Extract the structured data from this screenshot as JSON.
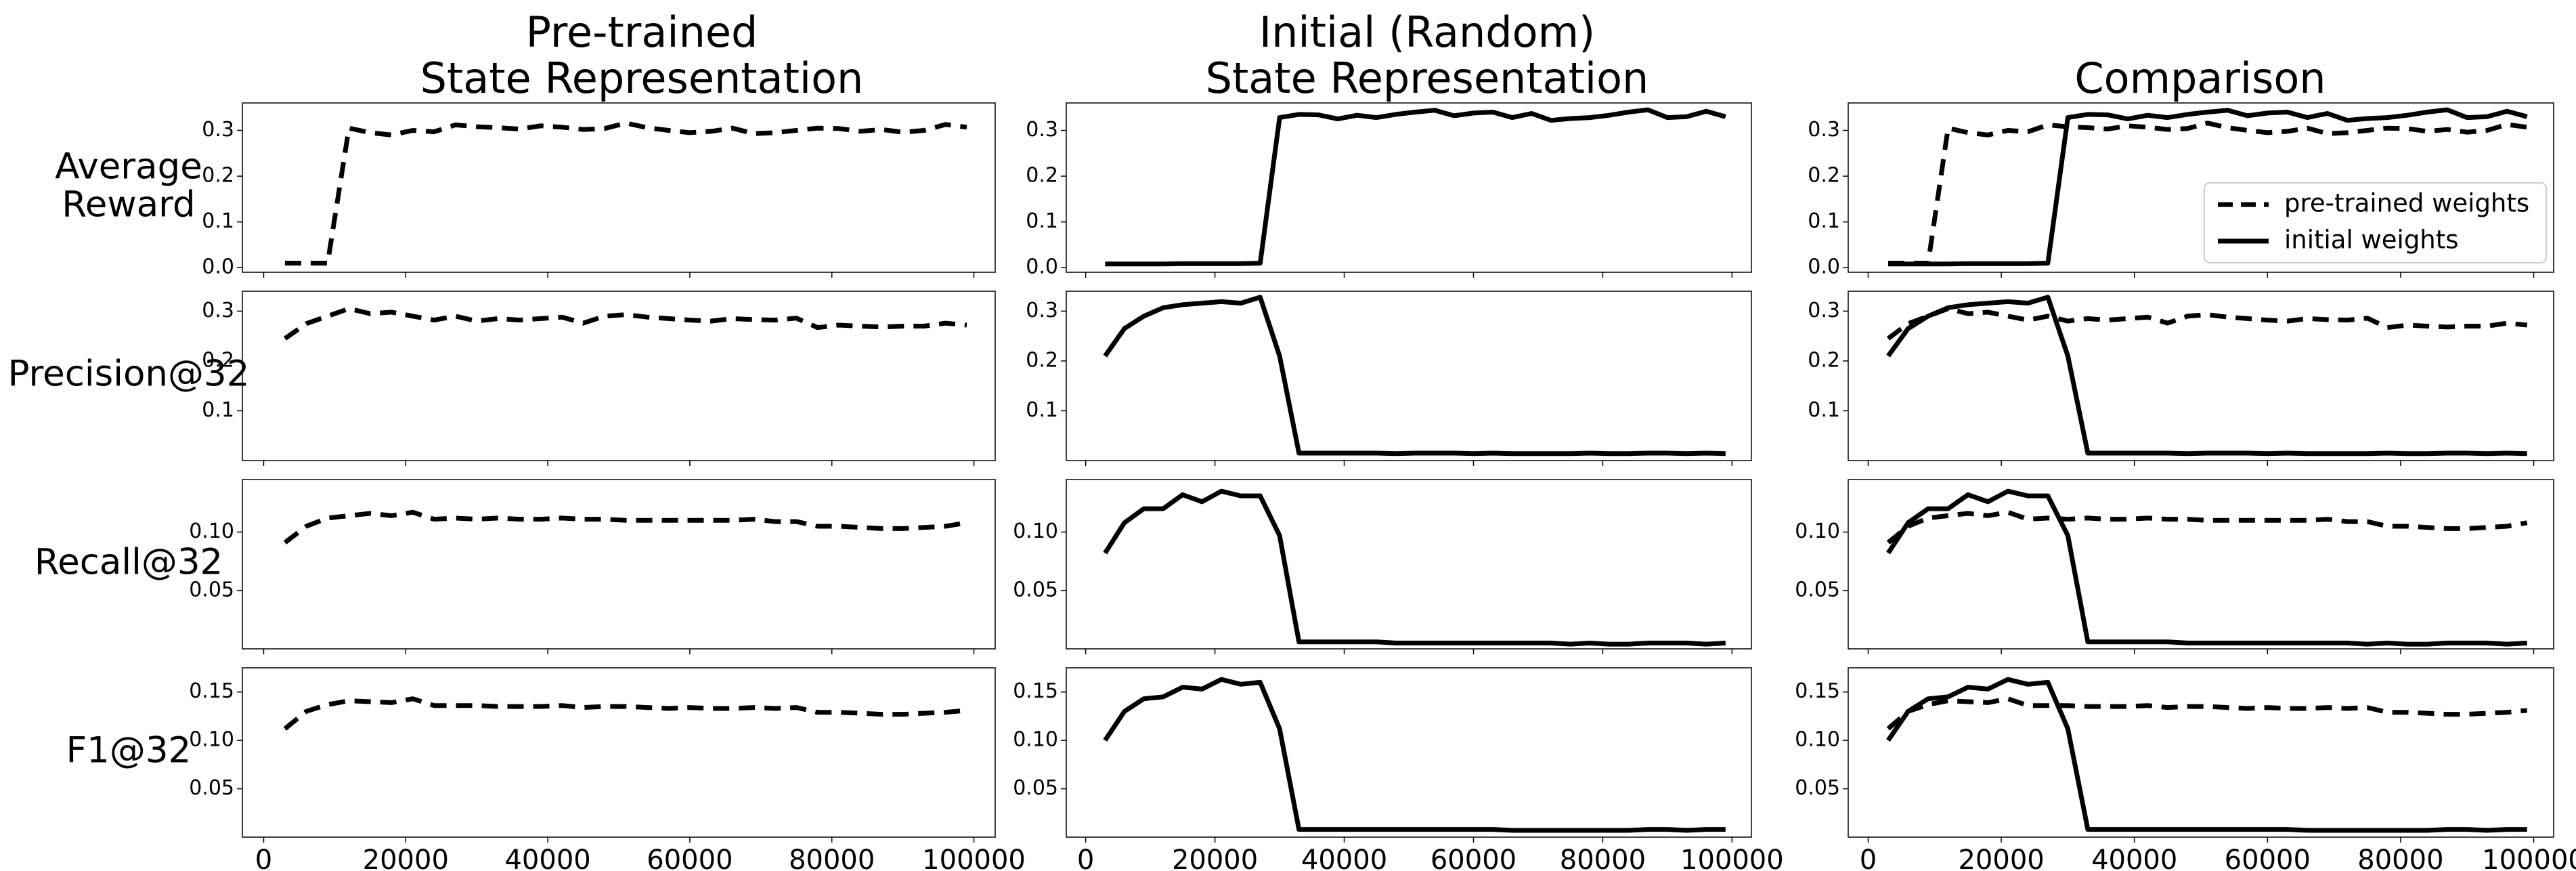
{
  "chart_data": {
    "type": "line",
    "column_titles": [
      [
        "Pre-trained",
        "State Representation"
      ],
      [
        "Initial (Random)",
        "State Representation"
      ],
      [
        "Comparison"
      ]
    ],
    "row_labels": [
      [
        "Average",
        "Reward"
      ],
      [
        "Precision@32"
      ],
      [
        "Recall@32"
      ],
      [
        "F1@32"
      ]
    ],
    "xlim": [
      -3000,
      103000
    ],
    "xticks": [
      0,
      20000,
      40000,
      60000,
      80000,
      100000
    ],
    "xtick_labels": [
      "0",
      "20000",
      "40000",
      "60000",
      "80000",
      "100000"
    ],
    "legend": {
      "placement": "center-right",
      "entries": [
        {
          "label": "pre-trained weights",
          "style": "dashed"
        },
        {
          "label": "initial weights",
          "style": "solid"
        }
      ]
    },
    "x": [
      3000,
      6000,
      9000,
      12000,
      15000,
      18000,
      21000,
      24000,
      27000,
      30000,
      33000,
      36000,
      39000,
      42000,
      45000,
      48000,
      51000,
      54000,
      57000,
      60000,
      63000,
      66000,
      69000,
      72000,
      75000,
      78000,
      81000,
      84000,
      87000,
      90000,
      93000,
      96000,
      99000
    ],
    "metrics": [
      {
        "name": "Average Reward",
        "ylim": [
          -0.01,
          0.36
        ],
        "yticks": [
          0.0,
          0.1,
          0.2,
          0.3
        ],
        "ytick_labels": [
          "0.0",
          "0.1",
          "0.2",
          "0.3"
        ],
        "series": [
          {
            "name": "pre-trained weights",
            "style": "dashed",
            "values": [
              0.01,
              0.01,
              0.01,
              0.305,
              0.295,
              0.29,
              0.3,
              0.297,
              0.312,
              0.308,
              0.306,
              0.303,
              0.31,
              0.307,
              0.302,
              0.304,
              0.316,
              0.306,
              0.3,
              0.295,
              0.298,
              0.305,
              0.293,
              0.295,
              0.3,
              0.305,
              0.304,
              0.298,
              0.302,
              0.296,
              0.3,
              0.313,
              0.307
            ]
          },
          {
            "name": "initial weights",
            "style": "solid",
            "values": [
              0.008,
              0.008,
              0.008,
              0.008,
              0.009,
              0.009,
              0.009,
              0.009,
              0.01,
              0.328,
              0.335,
              0.334,
              0.325,
              0.333,
              0.328,
              0.335,
              0.34,
              0.344,
              0.332,
              0.338,
              0.34,
              0.328,
              0.337,
              0.322,
              0.326,
              0.328,
              0.333,
              0.34,
              0.345,
              0.328,
              0.33,
              0.342,
              0.33
            ]
          }
        ]
      },
      {
        "name": "Precision@32",
        "ylim": [
          0.0,
          0.34
        ],
        "yticks": [
          0.1,
          0.2,
          0.3
        ],
        "ytick_labels": [
          "0.1",
          "0.2",
          "0.3"
        ],
        "series": [
          {
            "name": "pre-trained weights",
            "style": "dashed",
            "values": [
              0.245,
              0.275,
              0.29,
              0.305,
              0.295,
              0.298,
              0.29,
              0.282,
              0.29,
              0.28,
              0.285,
              0.282,
              0.285,
              0.288,
              0.276,
              0.29,
              0.293,
              0.288,
              0.285,
              0.282,
              0.28,
              0.285,
              0.283,
              0.282,
              0.286,
              0.267,
              0.272,
              0.27,
              0.268,
              0.27,
              0.27,
              0.276,
              0.272
            ]
          },
          {
            "name": "initial weights",
            "style": "solid",
            "values": [
              0.21,
              0.265,
              0.29,
              0.307,
              0.313,
              0.316,
              0.319,
              0.316,
              0.328,
              0.21,
              0.015,
              0.015,
              0.015,
              0.015,
              0.015,
              0.014,
              0.015,
              0.015,
              0.015,
              0.014,
              0.015,
              0.014,
              0.014,
              0.014,
              0.014,
              0.015,
              0.014,
              0.014,
              0.015,
              0.015,
              0.014,
              0.015,
              0.014
            ]
          }
        ]
      },
      {
        "name": "Recall@32",
        "ylim": [
          0.0,
          0.145
        ],
        "yticks": [
          0.05,
          0.1
        ],
        "ytick_labels": [
          "0.05",
          "0.10"
        ],
        "series": [
          {
            "name": "pre-trained weights",
            "style": "dashed",
            "values": [
              0.091,
              0.105,
              0.112,
              0.114,
              0.116,
              0.114,
              0.117,
              0.111,
              0.112,
              0.111,
              0.112,
              0.111,
              0.111,
              0.112,
              0.111,
              0.111,
              0.11,
              0.11,
              0.11,
              0.11,
              0.11,
              0.11,
              0.111,
              0.109,
              0.109,
              0.105,
              0.105,
              0.104,
              0.103,
              0.103,
              0.104,
              0.105,
              0.108
            ]
          },
          {
            "name": "initial weights",
            "style": "solid",
            "values": [
              0.082,
              0.108,
              0.12,
              0.12,
              0.132,
              0.126,
              0.135,
              0.131,
              0.131,
              0.097,
              0.006,
              0.006,
              0.006,
              0.006,
              0.006,
              0.005,
              0.005,
              0.005,
              0.005,
              0.005,
              0.005,
              0.005,
              0.005,
              0.005,
              0.004,
              0.005,
              0.004,
              0.004,
              0.005,
              0.005,
              0.005,
              0.004,
              0.005
            ]
          }
        ]
      },
      {
        "name": "F1@32",
        "ylim": [
          0.0,
          0.175
        ],
        "yticks": [
          0.05,
          0.1,
          0.15
        ],
        "ytick_labels": [
          "0.05",
          "0.10",
          "0.15"
        ],
        "series": [
          {
            "name": "pre-trained weights",
            "style": "dashed",
            "values": [
              0.112,
              0.13,
              0.137,
              0.141,
              0.14,
              0.139,
              0.143,
              0.136,
              0.136,
              0.136,
              0.135,
              0.135,
              0.135,
              0.136,
              0.134,
              0.135,
              0.135,
              0.134,
              0.133,
              0.134,
              0.133,
              0.133,
              0.134,
              0.133,
              0.134,
              0.129,
              0.129,
              0.128,
              0.127,
              0.127,
              0.128,
              0.129,
              0.131
            ]
          },
          {
            "name": "initial weights",
            "style": "solid",
            "values": [
              0.1,
              0.13,
              0.143,
              0.145,
              0.155,
              0.153,
              0.163,
              0.158,
              0.16,
              0.112,
              0.008,
              0.008,
              0.008,
              0.008,
              0.008,
              0.008,
              0.008,
              0.008,
              0.008,
              0.008,
              0.008,
              0.007,
              0.007,
              0.007,
              0.007,
              0.007,
              0.007,
              0.007,
              0.008,
              0.008,
              0.007,
              0.008,
              0.008
            ]
          }
        ]
      }
    ]
  }
}
